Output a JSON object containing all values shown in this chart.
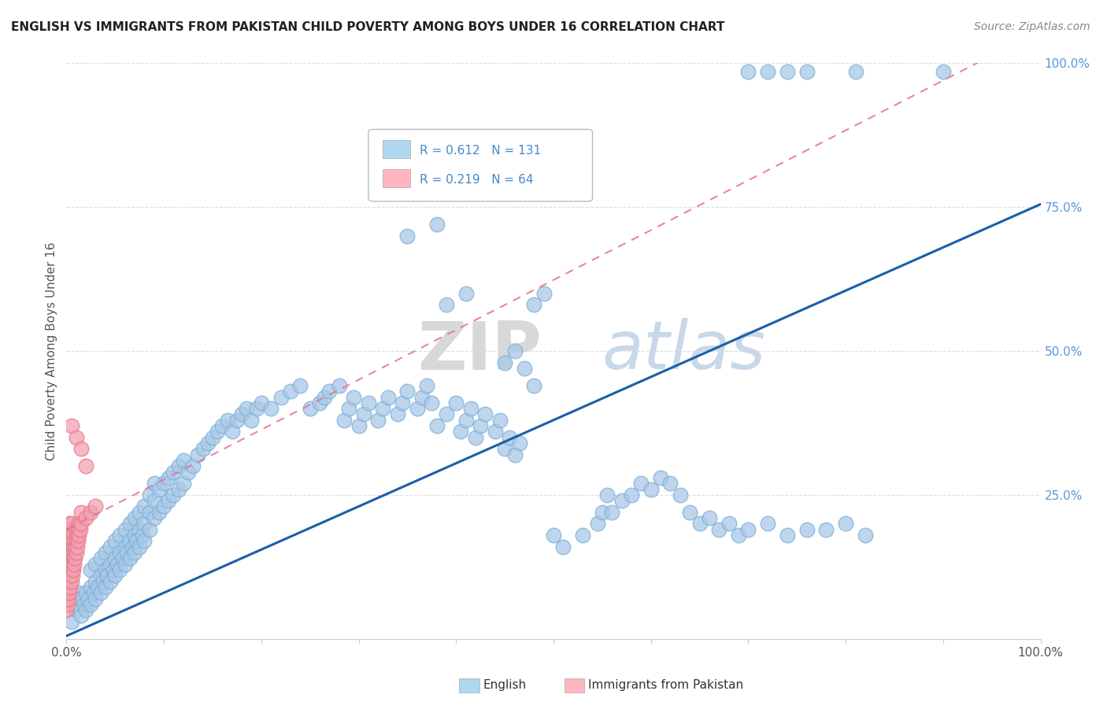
{
  "title": "ENGLISH VS IMMIGRANTS FROM PAKISTAN CHILD POVERTY AMONG BOYS UNDER 16 CORRELATION CHART",
  "source": "Source: ZipAtlas.com",
  "ylabel": "Child Poverty Among Boys Under 16",
  "english_color": "#a8c8e8",
  "english_edge_color": "#7aafd4",
  "pakistan_color": "#f4a0b0",
  "pakistan_edge_color": "#e07888",
  "english_line_color": "#1a5fa8",
  "pakistan_line_color": "#e87090",
  "legend_blue_color": "#add8f0",
  "legend_pink_color": "#ffb6c1",
  "label_color": "#4488cc",
  "watermark_zip_color": "#d8d8d8",
  "watermark_atlas_color": "#c8d8e8",
  "grid_color": "#dddddd",
  "right_tick_color": "#5599dd",
  "english_line": [
    [
      0.0,
      0.005
    ],
    [
      1.0,
      0.755
    ]
  ],
  "pakistan_line": [
    [
      0.0,
      0.19
    ],
    [
      0.15,
      0.32
    ]
  ],
  "english_points": [
    [
      0.005,
      0.03
    ],
    [
      0.008,
      0.06
    ],
    [
      0.01,
      0.05
    ],
    [
      0.012,
      0.08
    ],
    [
      0.015,
      0.04
    ],
    [
      0.015,
      0.07
    ],
    [
      0.018,
      0.06
    ],
    [
      0.02,
      0.05
    ],
    [
      0.02,
      0.08
    ],
    [
      0.022,
      0.07
    ],
    [
      0.025,
      0.06
    ],
    [
      0.025,
      0.09
    ],
    [
      0.025,
      0.12
    ],
    [
      0.028,
      0.08
    ],
    [
      0.03,
      0.07
    ],
    [
      0.03,
      0.1
    ],
    [
      0.03,
      0.13
    ],
    [
      0.032,
      0.09
    ],
    [
      0.035,
      0.08
    ],
    [
      0.035,
      0.11
    ],
    [
      0.035,
      0.14
    ],
    [
      0.038,
      0.1
    ],
    [
      0.04,
      0.09
    ],
    [
      0.04,
      0.12
    ],
    [
      0.04,
      0.15
    ],
    [
      0.042,
      0.11
    ],
    [
      0.045,
      0.1
    ],
    [
      0.045,
      0.13
    ],
    [
      0.045,
      0.16
    ],
    [
      0.048,
      0.12
    ],
    [
      0.05,
      0.11
    ],
    [
      0.05,
      0.14
    ],
    [
      0.05,
      0.17
    ],
    [
      0.052,
      0.13
    ],
    [
      0.055,
      0.12
    ],
    [
      0.055,
      0.15
    ],
    [
      0.055,
      0.18
    ],
    [
      0.058,
      0.14
    ],
    [
      0.06,
      0.13
    ],
    [
      0.06,
      0.16
    ],
    [
      0.06,
      0.19
    ],
    [
      0.062,
      0.15
    ],
    [
      0.065,
      0.14
    ],
    [
      0.065,
      0.17
    ],
    [
      0.065,
      0.2
    ],
    [
      0.068,
      0.16
    ],
    [
      0.07,
      0.15
    ],
    [
      0.07,
      0.18
    ],
    [
      0.07,
      0.21
    ],
    [
      0.072,
      0.17
    ],
    [
      0.075,
      0.16
    ],
    [
      0.075,
      0.19
    ],
    [
      0.075,
      0.22
    ],
    [
      0.078,
      0.18
    ],
    [
      0.08,
      0.17
    ],
    [
      0.08,
      0.2
    ],
    [
      0.08,
      0.23
    ],
    [
      0.085,
      0.19
    ],
    [
      0.085,
      0.22
    ],
    [
      0.085,
      0.25
    ],
    [
      0.09,
      0.21
    ],
    [
      0.09,
      0.24
    ],
    [
      0.09,
      0.27
    ],
    [
      0.095,
      0.22
    ],
    [
      0.095,
      0.26
    ],
    [
      0.1,
      0.23
    ],
    [
      0.1,
      0.27
    ],
    [
      0.105,
      0.24
    ],
    [
      0.105,
      0.28
    ],
    [
      0.11,
      0.25
    ],
    [
      0.11,
      0.29
    ],
    [
      0.115,
      0.26
    ],
    [
      0.115,
      0.3
    ],
    [
      0.12,
      0.27
    ],
    [
      0.12,
      0.31
    ],
    [
      0.125,
      0.29
    ],
    [
      0.13,
      0.3
    ],
    [
      0.135,
      0.32
    ],
    [
      0.14,
      0.33
    ],
    [
      0.145,
      0.34
    ],
    [
      0.15,
      0.35
    ],
    [
      0.155,
      0.36
    ],
    [
      0.16,
      0.37
    ],
    [
      0.165,
      0.38
    ],
    [
      0.17,
      0.36
    ],
    [
      0.175,
      0.38
    ],
    [
      0.18,
      0.39
    ],
    [
      0.185,
      0.4
    ],
    [
      0.19,
      0.38
    ],
    [
      0.195,
      0.4
    ],
    [
      0.2,
      0.41
    ],
    [
      0.21,
      0.4
    ],
    [
      0.22,
      0.42
    ],
    [
      0.23,
      0.43
    ],
    [
      0.24,
      0.44
    ],
    [
      0.25,
      0.4
    ],
    [
      0.26,
      0.41
    ],
    [
      0.265,
      0.42
    ],
    [
      0.27,
      0.43
    ],
    [
      0.28,
      0.44
    ],
    [
      0.285,
      0.38
    ],
    [
      0.29,
      0.4
    ],
    [
      0.295,
      0.42
    ],
    [
      0.3,
      0.37
    ],
    [
      0.305,
      0.39
    ],
    [
      0.31,
      0.41
    ],
    [
      0.32,
      0.38
    ],
    [
      0.325,
      0.4
    ],
    [
      0.33,
      0.42
    ],
    [
      0.34,
      0.39
    ],
    [
      0.345,
      0.41
    ],
    [
      0.35,
      0.43
    ],
    [
      0.36,
      0.4
    ],
    [
      0.365,
      0.42
    ],
    [
      0.37,
      0.44
    ],
    [
      0.375,
      0.41
    ],
    [
      0.38,
      0.37
    ],
    [
      0.39,
      0.39
    ],
    [
      0.4,
      0.41
    ],
    [
      0.405,
      0.36
    ],
    [
      0.41,
      0.38
    ],
    [
      0.415,
      0.4
    ],
    [
      0.42,
      0.35
    ],
    [
      0.425,
      0.37
    ],
    [
      0.43,
      0.39
    ],
    [
      0.44,
      0.36
    ],
    [
      0.445,
      0.38
    ],
    [
      0.45,
      0.33
    ],
    [
      0.455,
      0.35
    ],
    [
      0.46,
      0.32
    ],
    [
      0.465,
      0.34
    ],
    [
      0.39,
      0.58
    ],
    [
      0.41,
      0.6
    ],
    [
      0.48,
      0.58
    ],
    [
      0.49,
      0.6
    ],
    [
      0.7,
      0.985
    ],
    [
      0.72,
      0.985
    ],
    [
      0.74,
      0.985
    ],
    [
      0.76,
      0.985
    ],
    [
      0.81,
      0.985
    ],
    [
      0.9,
      0.985
    ],
    [
      0.35,
      0.7
    ],
    [
      0.38,
      0.72
    ],
    [
      0.45,
      0.48
    ],
    [
      0.46,
      0.5
    ],
    [
      0.47,
      0.47
    ],
    [
      0.48,
      0.44
    ],
    [
      0.5,
      0.18
    ],
    [
      0.51,
      0.16
    ],
    [
      0.53,
      0.18
    ],
    [
      0.545,
      0.2
    ],
    [
      0.55,
      0.22
    ],
    [
      0.555,
      0.25
    ],
    [
      0.56,
      0.22
    ],
    [
      0.57,
      0.24
    ],
    [
      0.58,
      0.25
    ],
    [
      0.59,
      0.27
    ],
    [
      0.6,
      0.26
    ],
    [
      0.61,
      0.28
    ],
    [
      0.62,
      0.27
    ],
    [
      0.63,
      0.25
    ],
    [
      0.64,
      0.22
    ],
    [
      0.65,
      0.2
    ],
    [
      0.66,
      0.21
    ],
    [
      0.67,
      0.19
    ],
    [
      0.68,
      0.2
    ],
    [
      0.69,
      0.18
    ],
    [
      0.7,
      0.19
    ],
    [
      0.72,
      0.2
    ],
    [
      0.74,
      0.18
    ],
    [
      0.76,
      0.19
    ],
    [
      0.78,
      0.19
    ],
    [
      0.8,
      0.2
    ],
    [
      0.82,
      0.18
    ]
  ],
  "pakistan_points": [
    [
      0.0,
      0.05
    ],
    [
      0.0,
      0.07
    ],
    [
      0.0,
      0.09
    ],
    [
      0.001,
      0.06
    ],
    [
      0.001,
      0.08
    ],
    [
      0.001,
      0.1
    ],
    [
      0.001,
      0.12
    ],
    [
      0.002,
      0.07
    ],
    [
      0.002,
      0.09
    ],
    [
      0.002,
      0.11
    ],
    [
      0.002,
      0.13
    ],
    [
      0.002,
      0.15
    ],
    [
      0.002,
      0.17
    ],
    [
      0.003,
      0.08
    ],
    [
      0.003,
      0.1
    ],
    [
      0.003,
      0.12
    ],
    [
      0.003,
      0.14
    ],
    [
      0.003,
      0.16
    ],
    [
      0.003,
      0.18
    ],
    [
      0.003,
      0.2
    ],
    [
      0.004,
      0.09
    ],
    [
      0.004,
      0.11
    ],
    [
      0.004,
      0.13
    ],
    [
      0.004,
      0.15
    ],
    [
      0.004,
      0.17
    ],
    [
      0.004,
      0.19
    ],
    [
      0.005,
      0.1
    ],
    [
      0.005,
      0.12
    ],
    [
      0.005,
      0.14
    ],
    [
      0.005,
      0.16
    ],
    [
      0.005,
      0.18
    ],
    [
      0.005,
      0.2
    ],
    [
      0.006,
      0.11
    ],
    [
      0.006,
      0.13
    ],
    [
      0.006,
      0.15
    ],
    [
      0.006,
      0.17
    ],
    [
      0.007,
      0.12
    ],
    [
      0.007,
      0.14
    ],
    [
      0.007,
      0.16
    ],
    [
      0.007,
      0.18
    ],
    [
      0.008,
      0.13
    ],
    [
      0.008,
      0.15
    ],
    [
      0.008,
      0.17
    ],
    [
      0.009,
      0.14
    ],
    [
      0.009,
      0.16
    ],
    [
      0.01,
      0.15
    ],
    [
      0.01,
      0.17
    ],
    [
      0.01,
      0.19
    ],
    [
      0.011,
      0.16
    ],
    [
      0.011,
      0.18
    ],
    [
      0.012,
      0.17
    ],
    [
      0.012,
      0.19
    ],
    [
      0.013,
      0.18
    ],
    [
      0.013,
      0.2
    ],
    [
      0.014,
      0.19
    ],
    [
      0.015,
      0.2
    ],
    [
      0.015,
      0.22
    ],
    [
      0.02,
      0.21
    ],
    [
      0.025,
      0.22
    ],
    [
      0.03,
      0.23
    ],
    [
      0.005,
      0.37
    ],
    [
      0.01,
      0.35
    ],
    [
      0.02,
      0.3
    ],
    [
      0.015,
      0.33
    ]
  ]
}
